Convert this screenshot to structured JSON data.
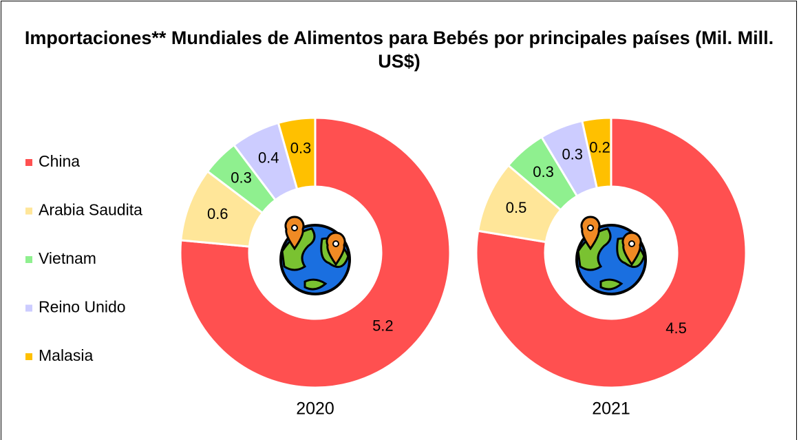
{
  "chart_data": {
    "type": "donut",
    "title": "Importaciones** Mundiales de Alimentos para Bebés por principales países (Mil. Mill. US$)",
    "categories": [
      "China",
      "Arabia Saudita",
      "Vietnam",
      "Reino Unido",
      "Malasia"
    ],
    "colors": [
      "#ff5050",
      "#ffe699",
      "#8ff08f",
      "#ccccff",
      "#ffc000"
    ],
    "legend": "left",
    "series": [
      {
        "name": "2020",
        "values": [
          5.2,
          0.6,
          0.3,
          0.4,
          0.3
        ]
      },
      {
        "name": "2021",
        "values": [
          4.5,
          0.5,
          0.3,
          0.3,
          0.2
        ]
      }
    ]
  }
}
